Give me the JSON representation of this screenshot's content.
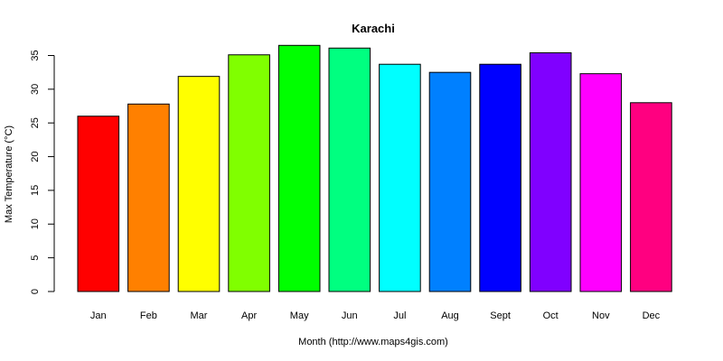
{
  "chart_data": {
    "type": "bar",
    "title": "Karachi",
    "xlabel": "Month (http://www.maps4gis.com)",
    "ylabel": "Max Temperature (°C)",
    "categories": [
      "Jan",
      "Feb",
      "Mar",
      "Apr",
      "May",
      "Jun",
      "Jul",
      "Aug",
      "Sept",
      "Oct",
      "Nov",
      "Dec"
    ],
    "values": [
      26.0,
      27.8,
      31.9,
      35.1,
      36.5,
      36.1,
      33.7,
      32.5,
      33.7,
      35.4,
      32.3,
      28.0
    ],
    "colors": [
      "#FF0000",
      "#FF8000",
      "#FFFF00",
      "#80FF00",
      "#00FF00",
      "#00FF80",
      "#00FFFF",
      "#0080FF",
      "#0000FF",
      "#8000FF",
      "#FF00FF",
      "#FF0080"
    ],
    "yticks": [
      0,
      5,
      10,
      15,
      20,
      25,
      30,
      35
    ],
    "ylim": [
      0,
      35.2
    ],
    "grid": false,
    "legend": "none"
  }
}
